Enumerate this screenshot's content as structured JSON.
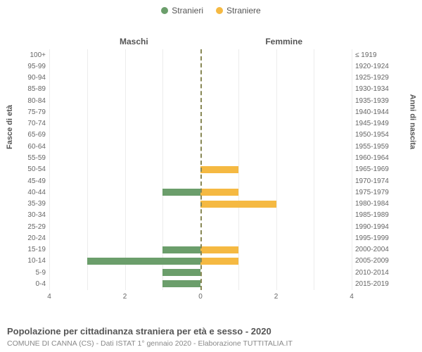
{
  "legend": {
    "male": {
      "label": "Stranieri",
      "color": "#6b9e6b"
    },
    "female": {
      "label": "Straniere",
      "color": "#f5b942"
    }
  },
  "headings": {
    "left": "Maschi",
    "right": "Femmine"
  },
  "axis_titles": {
    "left": "Fasce di età",
    "right": "Anni di nascita"
  },
  "x": {
    "max": 4,
    "ticks": [
      4,
      2,
      0,
      2,
      4
    ]
  },
  "colors": {
    "male": "#6b9e6b",
    "female": "#f5b942",
    "grid": "#ececec",
    "center": "#888855",
    "bg": "#ffffff"
  },
  "rows": [
    {
      "age": "100+",
      "birth": "≤ 1919",
      "m": 0,
      "f": 0
    },
    {
      "age": "95-99",
      "birth": "1920-1924",
      "m": 0,
      "f": 0
    },
    {
      "age": "90-94",
      "birth": "1925-1929",
      "m": 0,
      "f": 0
    },
    {
      "age": "85-89",
      "birth": "1930-1934",
      "m": 0,
      "f": 0
    },
    {
      "age": "80-84",
      "birth": "1935-1939",
      "m": 0,
      "f": 0
    },
    {
      "age": "75-79",
      "birth": "1940-1944",
      "m": 0,
      "f": 0
    },
    {
      "age": "70-74",
      "birth": "1945-1949",
      "m": 0,
      "f": 0
    },
    {
      "age": "65-69",
      "birth": "1950-1954",
      "m": 0,
      "f": 0
    },
    {
      "age": "60-64",
      "birth": "1955-1959",
      "m": 0,
      "f": 0
    },
    {
      "age": "55-59",
      "birth": "1960-1964",
      "m": 0,
      "f": 0
    },
    {
      "age": "50-54",
      "birth": "1965-1969",
      "m": 0,
      "f": 1
    },
    {
      "age": "45-49",
      "birth": "1970-1974",
      "m": 0,
      "f": 0
    },
    {
      "age": "40-44",
      "birth": "1975-1979",
      "m": 1,
      "f": 1
    },
    {
      "age": "35-39",
      "birth": "1980-1984",
      "m": 0,
      "f": 2
    },
    {
      "age": "30-34",
      "birth": "1985-1989",
      "m": 0,
      "f": 0
    },
    {
      "age": "25-29",
      "birth": "1990-1994",
      "m": 0,
      "f": 0
    },
    {
      "age": "20-24",
      "birth": "1995-1999",
      "m": 0,
      "f": 0
    },
    {
      "age": "15-19",
      "birth": "2000-2004",
      "m": 1,
      "f": 1
    },
    {
      "age": "10-14",
      "birth": "2005-2009",
      "m": 3,
      "f": 1
    },
    {
      "age": "5-9",
      "birth": "2010-2014",
      "m": 1,
      "f": 0
    },
    {
      "age": "0-4",
      "birth": "2015-2019",
      "m": 1,
      "f": 0
    }
  ],
  "caption": "Popolazione per cittadinanza straniera per età e sesso - 2020",
  "subcaption": "COMUNE DI CANNA (CS) - Dati ISTAT 1° gennaio 2020 - Elaborazione TUTTITALIA.IT"
}
